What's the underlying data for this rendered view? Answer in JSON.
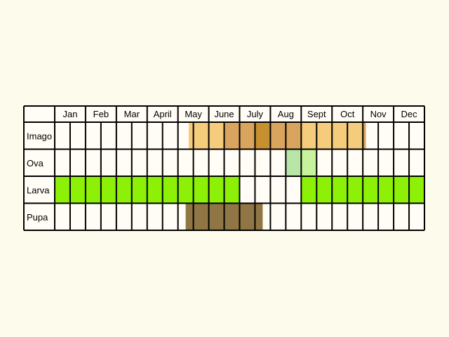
{
  "months": [
    "Jan",
    "Feb",
    "Mar",
    "April",
    "May",
    "June",
    "July",
    "Aug",
    "Sept",
    "Oct",
    "Nov",
    "Dec"
  ],
  "stages": [
    {
      "label": "Imago",
      "segments": [
        {
          "from_half": 8.7,
          "to_half": 11,
          "color": "#f5cb7c"
        },
        {
          "from_half": 11,
          "to_half": 13,
          "color": "#d9a55e"
        },
        {
          "from_half": 13,
          "to_half": 14,
          "color": "#c6902f"
        },
        {
          "from_half": 14,
          "to_half": 16,
          "color": "#d9a55e"
        },
        {
          "from_half": 16,
          "to_half": 20,
          "color": "#f5cb7c"
        },
        {
          "from_half": 20,
          "to_half": 20.2,
          "color": "#d9a55e"
        }
      ]
    },
    {
      "label": "Ova",
      "segments": [
        {
          "from_half": 15,
          "to_half": 16,
          "color": "#b8e6a8"
        },
        {
          "from_half": 16,
          "to_half": 17,
          "color": "#c8f29c"
        }
      ]
    },
    {
      "label": "Larva",
      "segments": [
        {
          "from_half": 0,
          "to_half": 12,
          "color": "#8cf007"
        },
        {
          "from_half": 16,
          "to_half": 24,
          "color": "#8cf007"
        }
      ]
    },
    {
      "label": "Pupa",
      "segments": [
        {
          "from_half": 8.5,
          "to_half": 13.5,
          "color": "#8f7644"
        }
      ]
    }
  ],
  "colors": {
    "background": "#fdfbeb",
    "cell": "#fffdf5",
    "grid": "#000000"
  }
}
